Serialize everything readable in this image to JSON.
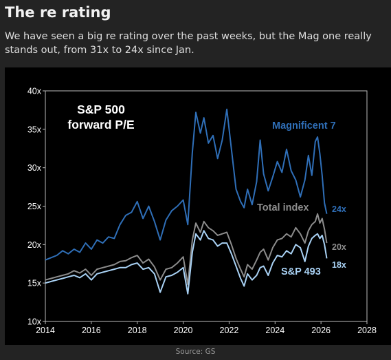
{
  "post": {
    "title": "The re rating",
    "subtitle": "We have seen a big re rating over the past weeks, but the Mag one really stands out, from 31x to 24x since Jan.",
    "source": "Source: GS"
  },
  "colors": {
    "magnificent_7": "#2f6fb8",
    "total_index": "#8c8c8c",
    "sp_493": "#a9d2f5",
    "background": "#000000",
    "page": "#232323"
  },
  "chart_data": {
    "type": "line",
    "title": "S&P 500\nforward P/E",
    "title_lines": [
      "S&P 500",
      "forward P/E"
    ],
    "xlabel": "",
    "ylabel": "",
    "xlim": [
      2014,
      2028
    ],
    "ylim": [
      10,
      40
    ],
    "x_ticks": [
      "2014",
      "2016",
      "2018",
      "2020",
      "2022",
      "2024",
      "2026",
      "2028"
    ],
    "x_tick_values": [
      2014,
      2016,
      2018,
      2020,
      2022,
      2024,
      2026,
      2028
    ],
    "y_ticks": [
      "10x",
      "15x",
      "20x",
      "25x",
      "30x",
      "35x",
      "40x"
    ],
    "y_tick_values": [
      10,
      15,
      20,
      25,
      30,
      35,
      40
    ],
    "grid": false,
    "legend": "inline labels",
    "series": [
      {
        "name": "Magnificent 7",
        "color": "#2f6fb8",
        "end_label": "24x",
        "points": [
          [
            2014.0,
            18.0
          ],
          [
            2014.25,
            18.3
          ],
          [
            2014.5,
            18.6
          ],
          [
            2014.75,
            19.2
          ],
          [
            2015.0,
            18.8
          ],
          [
            2015.25,
            19.4
          ],
          [
            2015.5,
            19.0
          ],
          [
            2015.75,
            20.2
          ],
          [
            2016.0,
            19.4
          ],
          [
            2016.25,
            20.6
          ],
          [
            2016.5,
            20.2
          ],
          [
            2016.75,
            21.0
          ],
          [
            2017.0,
            20.8
          ],
          [
            2017.25,
            22.6
          ],
          [
            2017.5,
            23.8
          ],
          [
            2017.75,
            24.2
          ],
          [
            2018.0,
            25.6
          ],
          [
            2018.25,
            23.4
          ],
          [
            2018.5,
            25.0
          ],
          [
            2018.75,
            23.0
          ],
          [
            2019.0,
            20.6
          ],
          [
            2019.25,
            23.2
          ],
          [
            2019.5,
            24.4
          ],
          [
            2019.75,
            25.0
          ],
          [
            2020.0,
            25.8
          ],
          [
            2020.2,
            22.6
          ],
          [
            2020.4,
            32.0
          ],
          [
            2020.55,
            37.2
          ],
          [
            2020.75,
            34.5
          ],
          [
            2020.9,
            36.5
          ],
          [
            2021.1,
            33.2
          ],
          [
            2021.3,
            34.2
          ],
          [
            2021.5,
            31.2
          ],
          [
            2021.7,
            33.6
          ],
          [
            2021.9,
            37.6
          ],
          [
            2022.1,
            32.4
          ],
          [
            2022.3,
            27.2
          ],
          [
            2022.5,
            25.6
          ],
          [
            2022.65,
            24.8
          ],
          [
            2022.8,
            27.2
          ],
          [
            2023.0,
            25.2
          ],
          [
            2023.2,
            28.2
          ],
          [
            2023.35,
            33.6
          ],
          [
            2023.5,
            29.2
          ],
          [
            2023.7,
            27.0
          ],
          [
            2023.9,
            28.8
          ],
          [
            2024.1,
            30.8
          ],
          [
            2024.3,
            29.4
          ],
          [
            2024.5,
            32.4
          ],
          [
            2024.7,
            29.6
          ],
          [
            2024.9,
            28.4
          ],
          [
            2025.1,
            26.2
          ],
          [
            2025.3,
            28.4
          ],
          [
            2025.45,
            31.6
          ],
          [
            2025.6,
            29.0
          ],
          [
            2025.75,
            33.4
          ],
          [
            2025.85,
            34.0
          ],
          [
            2025.95,
            31.8
          ],
          [
            2026.05,
            29.0
          ],
          [
            2026.15,
            25.4
          ],
          [
            2026.25,
            24.0
          ]
        ]
      },
      {
        "name": "Total index",
        "color": "#8c8c8c",
        "end_label": "20x",
        "points": [
          [
            2014.0,
            15.4
          ],
          [
            2014.25,
            15.6
          ],
          [
            2014.5,
            15.8
          ],
          [
            2014.75,
            16.0
          ],
          [
            2015.0,
            16.2
          ],
          [
            2015.25,
            16.6
          ],
          [
            2015.5,
            16.3
          ],
          [
            2015.75,
            16.8
          ],
          [
            2016.0,
            16.0
          ],
          [
            2016.25,
            16.8
          ],
          [
            2016.5,
            17.0
          ],
          [
            2016.75,
            17.2
          ],
          [
            2017.0,
            17.4
          ],
          [
            2017.25,
            17.8
          ],
          [
            2017.5,
            17.9
          ],
          [
            2017.75,
            18.3
          ],
          [
            2018.0,
            18.6
          ],
          [
            2018.25,
            17.6
          ],
          [
            2018.5,
            18.1
          ],
          [
            2018.75,
            17.1
          ],
          [
            2019.0,
            15.4
          ],
          [
            2019.25,
            16.8
          ],
          [
            2019.5,
            17.0
          ],
          [
            2019.75,
            17.6
          ],
          [
            2020.0,
            18.4
          ],
          [
            2020.2,
            14.8
          ],
          [
            2020.4,
            20.6
          ],
          [
            2020.55,
            22.8
          ],
          [
            2020.75,
            21.6
          ],
          [
            2020.9,
            23.0
          ],
          [
            2021.1,
            22.2
          ],
          [
            2021.3,
            21.8
          ],
          [
            2021.5,
            21.2
          ],
          [
            2021.7,
            21.4
          ],
          [
            2021.9,
            21.6
          ],
          [
            2022.1,
            20.0
          ],
          [
            2022.3,
            18.2
          ],
          [
            2022.5,
            16.8
          ],
          [
            2022.65,
            15.8
          ],
          [
            2022.8,
            17.4
          ],
          [
            2023.0,
            16.8
          ],
          [
            2023.2,
            18.0
          ],
          [
            2023.35,
            19.0
          ],
          [
            2023.5,
            19.4
          ],
          [
            2023.7,
            18.0
          ],
          [
            2023.9,
            19.6
          ],
          [
            2024.1,
            20.6
          ],
          [
            2024.3,
            20.8
          ],
          [
            2024.5,
            21.4
          ],
          [
            2024.7,
            21.0
          ],
          [
            2024.9,
            22.2
          ],
          [
            2025.1,
            21.4
          ],
          [
            2025.3,
            20.2
          ],
          [
            2025.45,
            21.8
          ],
          [
            2025.6,
            22.6
          ],
          [
            2025.75,
            23.0
          ],
          [
            2025.85,
            24.0
          ],
          [
            2025.95,
            22.8
          ],
          [
            2026.05,
            23.4
          ],
          [
            2026.15,
            22.0
          ],
          [
            2026.25,
            20.2
          ]
        ]
      },
      {
        "name": "S&P 493",
        "color": "#a9d2f5",
        "end_label": "18x",
        "points": [
          [
            2014.0,
            15.0
          ],
          [
            2014.25,
            15.2
          ],
          [
            2014.5,
            15.4
          ],
          [
            2014.75,
            15.6
          ],
          [
            2015.0,
            15.8
          ],
          [
            2015.25,
            16.0
          ],
          [
            2015.5,
            15.7
          ],
          [
            2015.75,
            16.2
          ],
          [
            2016.0,
            15.4
          ],
          [
            2016.25,
            16.2
          ],
          [
            2016.5,
            16.4
          ],
          [
            2016.75,
            16.6
          ],
          [
            2017.0,
            16.8
          ],
          [
            2017.25,
            17.0
          ],
          [
            2017.5,
            17.0
          ],
          [
            2017.75,
            17.4
          ],
          [
            2018.0,
            17.6
          ],
          [
            2018.25,
            16.8
          ],
          [
            2018.5,
            17.0
          ],
          [
            2018.75,
            16.2
          ],
          [
            2019.0,
            13.8
          ],
          [
            2019.25,
            15.8
          ],
          [
            2019.5,
            16.0
          ],
          [
            2019.75,
            16.4
          ],
          [
            2020.0,
            17.0
          ],
          [
            2020.2,
            13.6
          ],
          [
            2020.4,
            19.0
          ],
          [
            2020.55,
            21.4
          ],
          [
            2020.75,
            20.6
          ],
          [
            2020.9,
            21.8
          ],
          [
            2021.1,
            20.8
          ],
          [
            2021.3,
            20.6
          ],
          [
            2021.5,
            19.8
          ],
          [
            2021.7,
            20.2
          ],
          [
            2021.9,
            20.2
          ],
          [
            2022.1,
            18.8
          ],
          [
            2022.3,
            17.2
          ],
          [
            2022.5,
            15.6
          ],
          [
            2022.65,
            14.6
          ],
          [
            2022.8,
            16.2
          ],
          [
            2023.0,
            15.4
          ],
          [
            2023.2,
            16.0
          ],
          [
            2023.35,
            17.0
          ],
          [
            2023.5,
            17.2
          ],
          [
            2023.7,
            16.0
          ],
          [
            2023.9,
            17.6
          ],
          [
            2024.1,
            18.6
          ],
          [
            2024.3,
            18.4
          ],
          [
            2024.5,
            19.2
          ],
          [
            2024.7,
            18.8
          ],
          [
            2024.9,
            20.0
          ],
          [
            2025.1,
            19.6
          ],
          [
            2025.3,
            17.8
          ],
          [
            2025.45,
            19.8
          ],
          [
            2025.6,
            20.8
          ],
          [
            2025.75,
            21.2
          ],
          [
            2025.85,
            21.4
          ],
          [
            2025.95,
            20.8
          ],
          [
            2026.05,
            21.2
          ],
          [
            2026.15,
            20.0
          ],
          [
            2026.25,
            18.2
          ]
        ]
      }
    ]
  }
}
